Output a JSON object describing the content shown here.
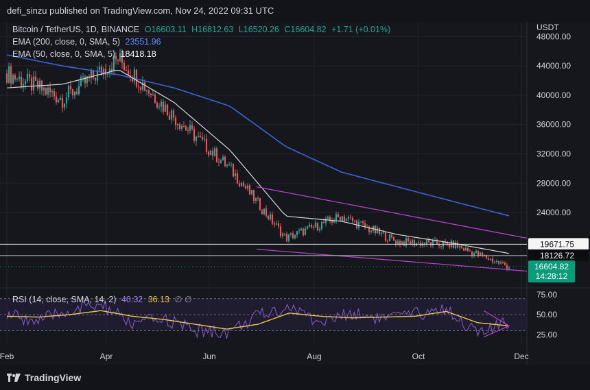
{
  "header": {
    "published_by": "defi_sinzu published on TradingView.com, Nov 24, 2022 09:31 UTC"
  },
  "legend": {
    "symbol": "Bitcoin / TetherUS, 1D, BINANCE",
    "open": "O16603.11",
    "high": "H16812.63",
    "low": "L16520.26",
    "close": "C16604.82",
    "change": "+1.71 (+0.01%)",
    "ema200_label": "EMA (200, close, 0, SMA, 5)",
    "ema200_value": "23551.96",
    "ema50_label": "EMA (50, close, 0, SMA, 5)",
    "ema50_value": "18418.18"
  },
  "rsi_legend": {
    "label": "RSI (14, close, SMA, 14, 2)",
    "rsi_value": "40.32",
    "ma_value": "36.13",
    "extra": "∅ ∅"
  },
  "footer": {
    "brand": "TradingView"
  },
  "colors": {
    "up": "#26a69a",
    "down": "#ef5350",
    "ema200": "#3d63d8",
    "ema50": "#d9d9d9",
    "trendline": "#b043c9",
    "rsi": "#7e57c2",
    "rsi_ma": "#e8c94a",
    "price_tag": "#0a9b7b"
  },
  "chart_data": [
    {
      "type": "line",
      "name": "BTC/USDT daily price chart",
      "x": [
        "Feb",
        "Mar",
        "Apr",
        "May",
        "Jun",
        "Jul",
        "Aug",
        "Sep",
        "Oct",
        "Nov"
      ],
      "series": [
        {
          "name": "close",
          "values": [
            43000,
            39500,
            45000,
            37000,
            30000,
            20500,
            23500,
            20000,
            19600,
            16600
          ]
        },
        {
          "name": "EMA 200",
          "values": [
            45500,
            44000,
            42800,
            41000,
            38500,
            33000,
            29500,
            27500,
            25500,
            23552
          ]
        },
        {
          "name": "EMA 50",
          "values": [
            41000,
            41500,
            43500,
            39000,
            32500,
            23500,
            22800,
            21000,
            19800,
            18418
          ]
        }
      ],
      "ylim": [
        14000,
        50000
      ],
      "y_unit": "USDT",
      "y_ticks": [
        "48000.00",
        "44000.00",
        "40000.00",
        "36000.00",
        "32000.00",
        "28000.00",
        "24000.00"
      ],
      "x_ticks": [
        "Feb",
        "Apr",
        "Jun",
        "Aug",
        "Oct",
        "Dec"
      ],
      "horizontal_levels": [
        {
          "label": "19671.75",
          "value": 19671.75
        },
        {
          "label": "18126.72",
          "value": 18126.72
        }
      ],
      "trendlines": [
        {
          "from": [
            "Jun",
            27500
          ],
          "to": [
            "Nov",
            20500
          ]
        },
        {
          "from": [
            "Jun",
            19000
          ],
          "to": [
            "Nov",
            16000
          ]
        }
      ],
      "last_price": {
        "value": "16604.82",
        "countdown": "14:28:12"
      }
    },
    {
      "type": "line",
      "name": "RSI panel",
      "series": [
        {
          "name": "RSI",
          "values": [
            50,
            42,
            55,
            62,
            38,
            45,
            30,
            28,
            48,
            60,
            40,
            52,
            45,
            50,
            58,
            26,
            40
          ]
        },
        {
          "name": "RSI SMA",
          "values": [
            48,
            47,
            50,
            55,
            48,
            44,
            38,
            32,
            38,
            52,
            48,
            46,
            47,
            48,
            54,
            40,
            36
          ]
        }
      ],
      "ylim": [
        15,
        80
      ],
      "y_ticks": [
        "75.00",
        "50.00",
        "25.00"
      ],
      "band": [
        30,
        70
      ]
    }
  ]
}
